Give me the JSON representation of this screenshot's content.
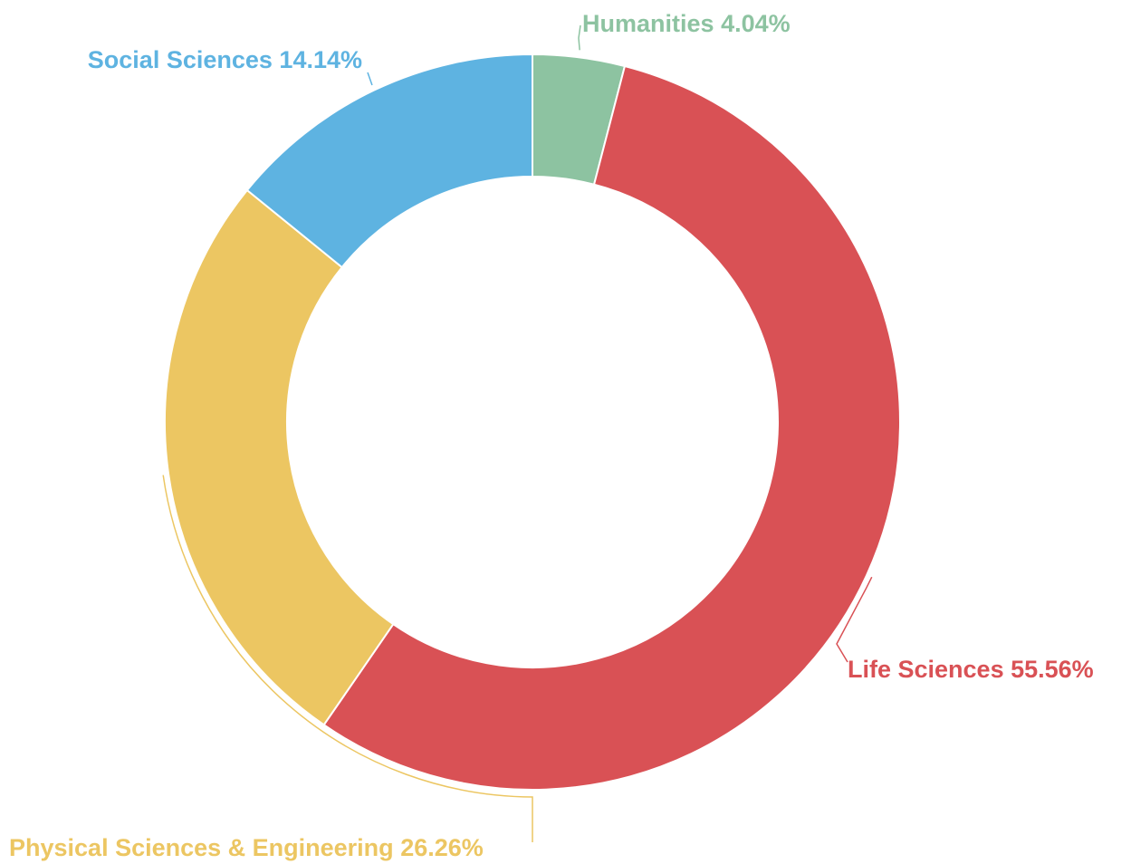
{
  "chart_data": {
    "type": "donut",
    "categories": [
      "Humanities",
      "Life Sciences",
      "Physical Sciences & Engineering",
      "Social Sciences"
    ],
    "values": [
      4.04,
      55.56,
      26.26,
      14.14
    ],
    "value_labels": [
      "4.04%",
      "55.56%",
      "26.26%",
      "14.14%"
    ],
    "colors": [
      "#8dc3a1",
      "#d95155",
      "#ecc662",
      "#5eb3e1"
    ]
  }
}
